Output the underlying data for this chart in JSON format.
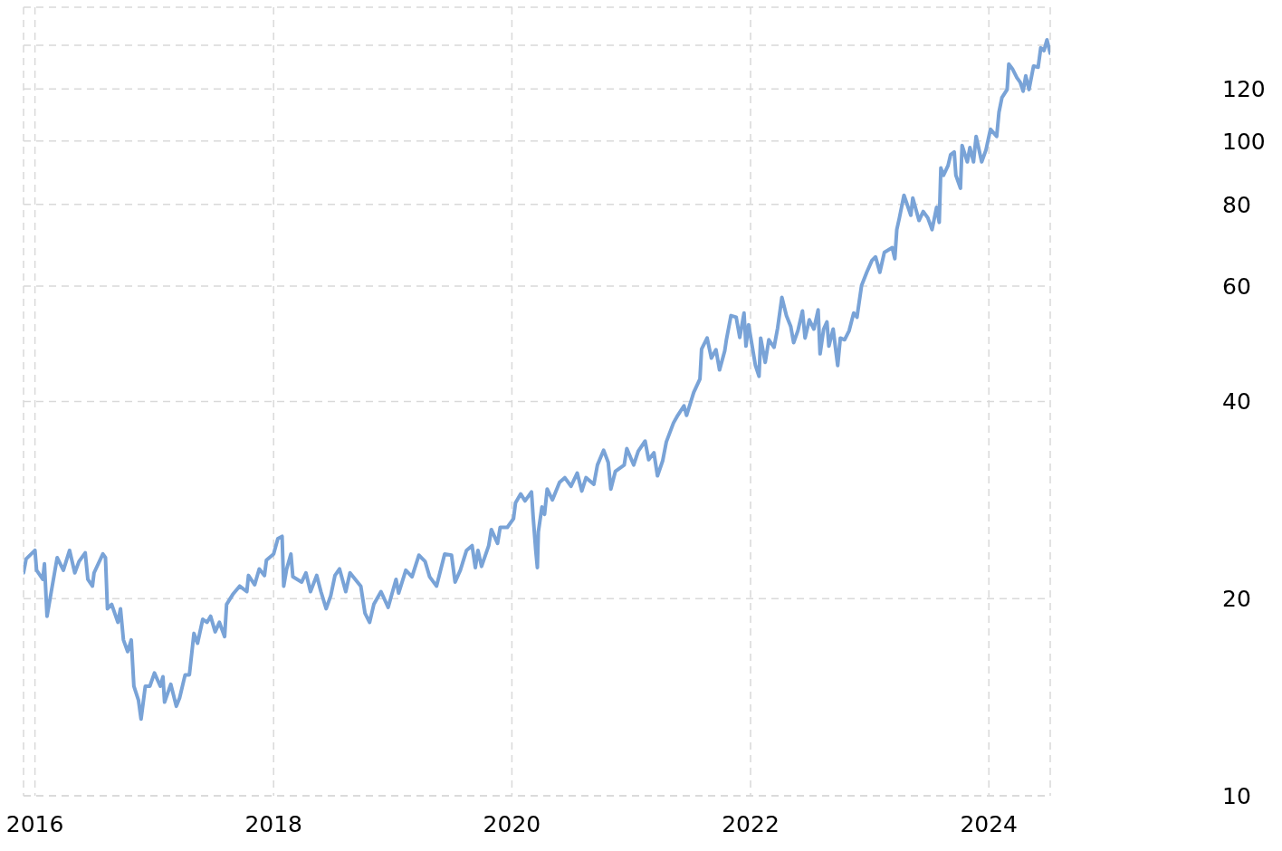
{
  "chart_data": {
    "type": "line",
    "line_style": "solid",
    "log": true,
    "grid": true,
    "xlim": [
      "2015-11-27",
      "2024-07-07"
    ],
    "xticks": [
      {
        "value": "2016-01-01",
        "label": "2016"
      },
      {
        "value": "2018-01-01",
        "label": "2018"
      },
      {
        "value": "2020-01-01",
        "label": "2020"
      },
      {
        "value": "2022-01-01",
        "label": "2022"
      },
      {
        "value": "2024-01-01",
        "label": "2024"
      }
    ],
    "ylim": [
      10,
      160
    ],
    "yticks": [
      10,
      20,
      40,
      60,
      80,
      100,
      120,
      {
        "value": 140,
        "label": null
      }
    ],
    "x": [
      "2015-11-27",
      "2015-12-05",
      "2016-01-01",
      "2016-01-06",
      "2016-01-25",
      "2016-01-30",
      "2016-02-07",
      "2016-02-20",
      "2016-03-09",
      "2016-03-28",
      "2016-04-16",
      "2016-05-02",
      "2016-05-15",
      "2016-06-03",
      "2016-06-11",
      "2016-06-25",
      "2016-06-30",
      "2016-07-27",
      "2016-08-04",
      "2016-08-10",
      "2016-08-23",
      "2016-09-11",
      "2016-09-19",
      "2016-09-28",
      "2016-10-11",
      "2016-10-22",
      "2016-10-30",
      "2016-11-13",
      "2016-11-21",
      "2016-12-04",
      "2016-12-18",
      "2017-01-01",
      "2017-01-19",
      "2017-01-27",
      "2017-02-01",
      "2017-02-20",
      "2017-03-09",
      "2017-03-19",
      "2017-04-05",
      "2017-04-18",
      "2017-05-02",
      "2017-05-13",
      "2017-05-29",
      "2017-06-11",
      "2017-06-22",
      "2017-07-06",
      "2017-07-19",
      "2017-08-04",
      "2017-08-10",
      "2017-08-29",
      "2017-09-19",
      "2017-10-11",
      "2017-10-16",
      "2017-11-04",
      "2017-11-18",
      "2017-12-04",
      "2017-12-10",
      "2018-01-01",
      "2018-01-14",
      "2018-01-27",
      "2018-02-01",
      "2018-02-10",
      "2018-02-23",
      "2018-03-01",
      "2018-03-28",
      "2018-04-10",
      "2018-04-24",
      "2018-05-13",
      "2018-05-26",
      "2018-06-11",
      "2018-06-25",
      "2018-07-08",
      "2018-07-22",
      "2018-08-10",
      "2018-08-23",
      "2018-09-25",
      "2018-10-08",
      "2018-10-22",
      "2018-11-04",
      "2018-11-26",
      "2018-12-18",
      "2019-01-11",
      "2019-01-19",
      "2019-02-10",
      "2019-03-01",
      "2019-03-22",
      "2019-04-10",
      "2019-04-24",
      "2019-05-15",
      "2019-06-09",
      "2019-06-30",
      "2019-07-11",
      "2019-07-27",
      "2019-08-15",
      "2019-09-01",
      "2019-09-11",
      "2019-09-19",
      "2019-09-30",
      "2019-10-22",
      "2019-10-30",
      "2019-11-18",
      "2019-11-26",
      "2019-12-18",
      "2020-01-06",
      "2020-01-12",
      "2020-01-28",
      "2020-02-10",
      "2020-03-01",
      "2020-03-06",
      "2020-03-14",
      "2020-03-19",
      "2020-03-22",
      "2020-04-02",
      "2020-04-10",
      "2020-04-18",
      "2020-05-04",
      "2020-05-26",
      "2020-06-11",
      "2020-06-30",
      "2020-07-19",
      "2020-08-02",
      "2020-08-15",
      "2020-09-08",
      "2020-09-19",
      "2020-10-08",
      "2020-10-22",
      "2020-10-30",
      "2020-11-13",
      "2020-12-10",
      "2020-12-18",
      "2021-01-08",
      "2021-01-22",
      "2021-02-12",
      "2021-02-23",
      "2021-03-11",
      "2021-03-22",
      "2021-04-07",
      "2021-04-18",
      "2021-05-10",
      "2021-05-23",
      "2021-06-11",
      "2021-06-19",
      "2021-07-11",
      "2021-07-30",
      "2021-08-04",
      "2021-08-21",
      "2021-09-03",
      "2021-09-17",
      "2021-09-28",
      "2021-10-14",
      "2021-10-19",
      "2021-11-02",
      "2021-11-18",
      "2021-11-29",
      "2021-12-12",
      "2021-12-18",
      "2021-12-26",
      "2022-01-16",
      "2022-01-27",
      "2022-02-01",
      "2022-02-15",
      "2022-02-26",
      "2022-03-14",
      "2022-03-25",
      "2022-04-07",
      "2022-04-21",
      "2022-05-04",
      "2022-05-13",
      "2022-05-26",
      "2022-06-09",
      "2022-06-17",
      "2022-06-30",
      "2022-07-14",
      "2022-07-27",
      "2022-08-02",
      "2022-08-13",
      "2022-08-23",
      "2022-08-29",
      "2022-09-11",
      "2022-09-25",
      "2022-10-03",
      "2022-10-16",
      "2022-10-30",
      "2022-11-13",
      "2022-11-23",
      "2022-12-07",
      "2022-12-23",
      "2023-01-08",
      "2023-01-19",
      "2023-02-01",
      "2023-02-15",
      "2023-03-11",
      "2023-03-19",
      "2023-03-25",
      "2023-04-02",
      "2023-04-16",
      "2023-05-07",
      "2023-05-13",
      "2023-06-01",
      "2023-06-14",
      "2023-06-28",
      "2023-07-11",
      "2023-07-25",
      "2023-08-02",
      "2023-08-07",
      "2023-08-15",
      "2023-08-29",
      "2023-09-06",
      "2023-09-17",
      "2023-09-22",
      "2023-10-06",
      "2023-10-11",
      "2023-10-27",
      "2023-11-04",
      "2023-11-15",
      "2023-11-23",
      "2023-12-10",
      "2023-12-23",
      "2024-01-06",
      "2024-01-25",
      "2024-02-01",
      "2024-02-10",
      "2024-02-26",
      "2024-03-02",
      "2024-03-13",
      "2024-03-27",
      "2024-04-06",
      "2024-04-15",
      "2024-04-23",
      "2024-05-03",
      "2024-05-17",
      "2024-05-31",
      "2024-06-08",
      "2024-06-18",
      "2024-06-27",
      "2024-07-07"
    ],
    "series": [
      {
        "color": "#79a3d7",
        "values": [
          21.9,
          23.0,
          23.7,
          22.1,
          21.4,
          22.6,
          18.8,
          20.5,
          23.1,
          22.1,
          23.7,
          21.9,
          22.8,
          23.5,
          21.4,
          20.9,
          21.9,
          23.4,
          23.1,
          19.3,
          19.6,
          18.4,
          19.3,
          17.3,
          16.6,
          17.3,
          14.7,
          14.0,
          13.1,
          14.7,
          14.7,
          15.4,
          14.7,
          15.2,
          13.9,
          14.8,
          13.7,
          14.1,
          15.3,
          15.3,
          17.7,
          17.1,
          18.6,
          18.4,
          18.8,
          17.8,
          18.4,
          17.5,
          19.6,
          20.3,
          20.9,
          20.5,
          21.7,
          21.0,
          22.2,
          21.7,
          22.9,
          23.4,
          24.7,
          24.9,
          20.9,
          22.2,
          23.4,
          21.6,
          21.2,
          21.9,
          20.5,
          21.7,
          20.5,
          19.3,
          20.2,
          21.7,
          22.2,
          20.5,
          21.9,
          20.9,
          19.0,
          18.4,
          19.6,
          20.5,
          19.4,
          21.4,
          20.4,
          22.1,
          21.6,
          23.3,
          22.8,
          21.6,
          20.9,
          23.4,
          23.3,
          21.2,
          22.1,
          23.7,
          24.1,
          22.3,
          23.7,
          22.4,
          24.1,
          25.5,
          24.3,
          25.7,
          25.7,
          26.5,
          28.0,
          28.9,
          28.2,
          29.1,
          26.7,
          23.7,
          22.3,
          25.3,
          27.6,
          26.9,
          29.4,
          28.3,
          30.1,
          30.6,
          29.7,
          31.1,
          29.2,
          30.6,
          29.9,
          32.0,
          33.7,
          32.3,
          29.4,
          31.3,
          32.0,
          33.9,
          32.0,
          33.6,
          34.8,
          32.6,
          33.4,
          30.8,
          32.5,
          34.7,
          37.1,
          38.1,
          39.4,
          38.1,
          41.3,
          43.3,
          48.1,
          50.0,
          46.6,
          48.0,
          44.7,
          47.8,
          49.7,
          54.1,
          53.8,
          50.1,
          54.6,
          48.6,
          52.4,
          45.4,
          43.7,
          50.0,
          45.9,
          49.7,
          48.4,
          51.8,
          57.7,
          54.1,
          52.1,
          49.2,
          51.3,
          55.0,
          50.0,
          53.3,
          51.6,
          55.2,
          47.3,
          51.6,
          52.9,
          48.6,
          51.6,
          45.4,
          50.0,
          49.7,
          51.3,
          54.6,
          53.8,
          60.1,
          63.0,
          65.7,
          66.5,
          63.0,
          67.6,
          68.7,
          66.1,
          73.2,
          76.3,
          82.6,
          77.0,
          81.8,
          75.6,
          78.0,
          76.3,
          73.2,
          79.2,
          75.1,
          90.9,
          88.6,
          91.7,
          95.3,
          96.2,
          88.6,
          84.7,
          98.4,
          92.9,
          97.7,
          92.9,
          101.6,
          92.9,
          96.8,
          104.2,
          101.6,
          110.6,
          116.4,
          119.8,
          131.0,
          128.9,
          124.9,
          122.9,
          119.1,
          125.7,
          119.8,
          130.1,
          129.6,
          138.7,
          137.4,
          142.7,
          136.1
        ]
      }
    ]
  }
}
